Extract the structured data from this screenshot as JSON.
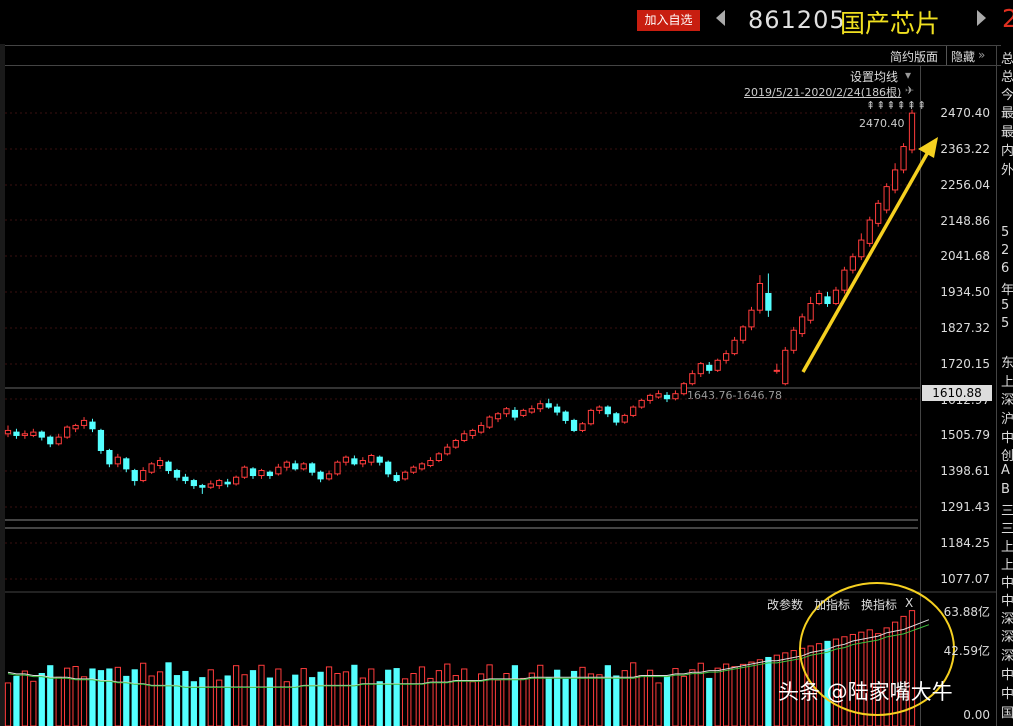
{
  "header": {
    "add_watchlist": "加入自选",
    "code": "861205",
    "name": "国产芯片",
    "right_digit": "2"
  },
  "toolbar": {
    "simple_layout": "简约版面",
    "hide": "隐藏"
  },
  "chart": {
    "ma_setting": "设置均线",
    "range_info": "2019/5/21-2020/2/24(186根)",
    "high_label": "2470.40",
    "range_label": "1643.76-1646.78",
    "current_price": "1610.88",
    "price_axis": [
      "2470.40",
      "2363.22",
      "2256.04",
      "2148.86",
      "2041.68",
      "1934.50",
      "1827.32",
      "1720.15",
      "1612.97",
      "1505.79",
      "1398.61",
      "1291.43",
      "1184.25",
      "1077.07"
    ]
  },
  "volume": {
    "modify_params": "改参数",
    "add_indicator": "加指标",
    "switch_indicator": "换指标",
    "close": "X",
    "axis": [
      "63.88亿",
      "42.59亿",
      "0.00"
    ]
  },
  "side_panel": [
    "总",
    "总",
    "今",
    "最",
    "最",
    "内",
    "外",
    "5",
    "2",
    "6",
    "年",
    "5",
    "5",
    "东",
    "上",
    "深",
    "沪",
    "中",
    "创",
    "A",
    "B",
    "三",
    "三",
    "上",
    "上",
    "中",
    "中",
    "深",
    "深",
    "深",
    "中",
    "中",
    "国"
  ],
  "watermark": "头条 @陆家嘴大牛",
  "colors": {
    "up": "#ff3c3c",
    "down": "#54ffff",
    "ma": "#dddddd",
    "arrow": "#f5d020"
  },
  "candles": [
    [
      1510,
      1520,
      1535,
      1500
    ],
    [
      1515,
      1505,
      1525,
      1495
    ],
    [
      1505,
      1510,
      1520,
      1495
    ],
    [
      1505,
      1515,
      1525,
      1500
    ],
    [
      1515,
      1500,
      1520,
      1490
    ],
    [
      1500,
      1480,
      1505,
      1470
    ],
    [
      1480,
      1500,
      1510,
      1475
    ],
    [
      1500,
      1530,
      1535,
      1495
    ],
    [
      1525,
      1535,
      1540,
      1515
    ],
    [
      1535,
      1550,
      1560,
      1525
    ],
    [
      1545,
      1525,
      1555,
      1515
    ],
    [
      1520,
      1460,
      1525,
      1450
    ],
    [
      1460,
      1420,
      1465,
      1410
    ],
    [
      1420,
      1440,
      1450,
      1410
    ],
    [
      1435,
      1405,
      1440,
      1395
    ],
    [
      1400,
      1370,
      1405,
      1355
    ],
    [
      1370,
      1400,
      1410,
      1365
    ],
    [
      1395,
      1420,
      1425,
      1390
    ],
    [
      1415,
      1430,
      1440,
      1405
    ],
    [
      1425,
      1400,
      1430,
      1390
    ],
    [
      1400,
      1380,
      1405,
      1370
    ],
    [
      1380,
      1370,
      1390,
      1360
    ],
    [
      1370,
      1355,
      1375,
      1345
    ],
    [
      1355,
      1350,
      1360,
      1330
    ],
    [
      1350,
      1360,
      1370,
      1345
    ],
    [
      1355,
      1370,
      1375,
      1345
    ],
    [
      1365,
      1360,
      1375,
      1350
    ],
    [
      1360,
      1380,
      1385,
      1355
    ],
    [
      1380,
      1410,
      1415,
      1375
    ],
    [
      1405,
      1385,
      1410,
      1375
    ],
    [
      1385,
      1400,
      1405,
      1375
    ],
    [
      1395,
      1385,
      1400,
      1375
    ],
    [
      1390,
      1410,
      1420,
      1385
    ],
    [
      1410,
      1425,
      1430,
      1400
    ],
    [
      1420,
      1405,
      1430,
      1400
    ],
    [
      1405,
      1420,
      1425,
      1400
    ],
    [
      1420,
      1395,
      1425,
      1385
    ],
    [
      1395,
      1375,
      1400,
      1365
    ],
    [
      1375,
      1390,
      1400,
      1370
    ],
    [
      1390,
      1425,
      1430,
      1385
    ],
    [
      1425,
      1440,
      1445,
      1415
    ],
    [
      1435,
      1420,
      1445,
      1415
    ],
    [
      1420,
      1430,
      1440,
      1410
    ],
    [
      1425,
      1445,
      1450,
      1415
    ],
    [
      1440,
      1425,
      1445,
      1415
    ],
    [
      1425,
      1390,
      1430,
      1380
    ],
    [
      1385,
      1370,
      1395,
      1365
    ],
    [
      1375,
      1395,
      1400,
      1370
    ],
    [
      1395,
      1410,
      1415,
      1390
    ],
    [
      1405,
      1420,
      1425,
      1400
    ],
    [
      1415,
      1430,
      1440,
      1410
    ],
    [
      1430,
      1450,
      1455,
      1425
    ],
    [
      1450,
      1470,
      1480,
      1445
    ],
    [
      1470,
      1490,
      1495,
      1465
    ],
    [
      1490,
      1510,
      1520,
      1485
    ],
    [
      1505,
      1520,
      1525,
      1495
    ],
    [
      1515,
      1535,
      1545,
      1510
    ],
    [
      1530,
      1560,
      1565,
      1525
    ],
    [
      1555,
      1570,
      1575,
      1545
    ],
    [
      1570,
      1585,
      1590,
      1560
    ],
    [
      1580,
      1560,
      1590,
      1550
    ],
    [
      1565,
      1580,
      1585,
      1560
    ],
    [
      1575,
      1585,
      1595,
      1570
    ],
    [
      1585,
      1600,
      1610,
      1575
    ],
    [
      1600,
      1590,
      1615,
      1585
    ],
    [
      1590,
      1575,
      1600,
      1565
    ],
    [
      1575,
      1550,
      1580,
      1540
    ],
    [
      1550,
      1520,
      1555,
      1515
    ],
    [
      1520,
      1540,
      1545,
      1515
    ],
    [
      1540,
      1580,
      1585,
      1535
    ],
    [
      1580,
      1590,
      1595,
      1570
    ],
    [
      1590,
      1570,
      1595,
      1560
    ],
    [
      1570,
      1545,
      1575,
      1535
    ],
    [
      1545,
      1565,
      1570,
      1540
    ],
    [
      1565,
      1590,
      1595,
      1560
    ],
    [
      1590,
      1610,
      1615,
      1585
    ],
    [
      1610,
      1625,
      1630,
      1600
    ],
    [
      1620,
      1630,
      1640,
      1615
    ],
    [
      1625,
      1615,
      1635,
      1605
    ],
    [
      1615,
      1630,
      1640,
      1610
    ],
    [
      1630,
      1660,
      1665,
      1625
    ],
    [
      1660,
      1690,
      1700,
      1655
    ],
    [
      1690,
      1720,
      1725,
      1680
    ],
    [
      1715,
      1700,
      1725,
      1690
    ],
    [
      1700,
      1730,
      1735,
      1695
    ],
    [
      1730,
      1750,
      1760,
      1720
    ],
    [
      1750,
      1790,
      1800,
      1745
    ],
    [
      1790,
      1830,
      1835,
      1780
    ],
    [
      1830,
      1880,
      1890,
      1820
    ],
    [
      1880,
      1960,
      1985,
      1870
    ],
    [
      1930,
      1880,
      1990,
      1860
    ],
    [
      1700,
      1700,
      1720,
      1690
    ],
    [
      1660,
      1760,
      1770,
      1655
    ],
    [
      1760,
      1820,
      1830,
      1750
    ],
    [
      1810,
      1860,
      1870,
      1800
    ],
    [
      1850,
      1900,
      1920,
      1840
    ],
    [
      1900,
      1930,
      1940,
      1895
    ],
    [
      1920,
      1900,
      1935,
      1890
    ],
    [
      1900,
      1940,
      1950,
      1895
    ],
    [
      1940,
      2000,
      2010,
      1930
    ],
    [
      2000,
      2040,
      2050,
      1990
    ],
    [
      2040,
      2090,
      2110,
      2030
    ],
    [
      2080,
      2150,
      2160,
      2070
    ],
    [
      2140,
      2200,
      2210,
      2130
    ],
    [
      2180,
      2250,
      2260,
      2170
    ],
    [
      2240,
      2300,
      2320,
      2230
    ],
    [
      2300,
      2370,
      2380,
      2290
    ],
    [
      2360,
      2470,
      2480,
      2350
    ]
  ],
  "vol_ma": [
    26,
    25,
    25,
    24,
    24,
    23,
    23,
    23,
    22,
    22,
    22,
    21,
    21,
    20,
    20,
    19,
    19,
    18,
    18,
    18,
    18,
    17,
    17,
    17,
    17,
    17,
    17,
    17,
    17,
    17,
    17,
    17,
    17,
    17,
    17,
    18,
    18,
    18,
    18,
    18,
    18,
    18,
    19,
    19,
    19,
    19,
    19,
    19,
    19,
    19,
    20,
    20,
    20,
    21,
    21,
    21,
    21,
    22,
    22,
    22,
    22,
    22,
    23,
    23,
    23,
    23,
    23,
    23,
    23,
    23,
    23,
    23,
    23,
    23,
    23,
    24,
    24,
    24,
    24,
    25,
    25,
    26,
    26,
    27,
    27,
    28,
    29,
    30,
    31,
    32,
    33,
    33,
    34,
    35,
    36,
    38,
    39,
    40,
    42,
    43,
    45,
    46,
    47,
    48,
    50,
    51,
    52,
    54,
    56,
    58
  ]
}
